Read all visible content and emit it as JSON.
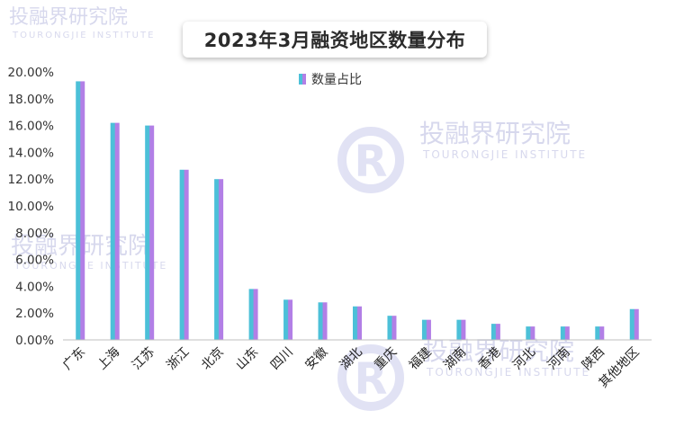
{
  "chart_data": {
    "type": "bar",
    "title": "2023年3月融资地区数量分布",
    "categories": [
      "广东",
      "上海",
      "江苏",
      "浙江",
      "北京",
      "山东",
      "四川",
      "安徽",
      "湖北",
      "重庆",
      "福建",
      "湖南",
      "香港",
      "河北",
      "河南",
      "陕西",
      "其他地区"
    ],
    "series": [
      {
        "name": "数量占比",
        "values": [
          19.3,
          16.2,
          16.0,
          12.7,
          12.0,
          3.8,
          3.0,
          2.8,
          2.5,
          1.8,
          1.5,
          1.5,
          1.2,
          1.0,
          1.0,
          1.0,
          2.3
        ]
      }
    ],
    "ylim": [
      0,
      20
    ],
    "yticks": [
      0,
      2,
      4,
      6,
      8,
      10,
      12,
      14,
      16,
      18,
      20
    ],
    "ytick_format": "%.2f%",
    "legend_position": "top-center",
    "grid": false,
    "colors": {
      "left_half": "#4cc0d8",
      "right_half": "#b27fe6"
    }
  },
  "watermark": {
    "brand": "投融界研究院",
    "english": "TOURONGJIE INSTITUTE"
  }
}
